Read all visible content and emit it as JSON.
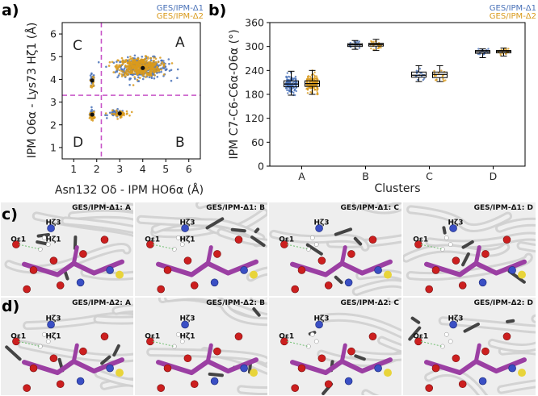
{
  "panel_labels": {
    "a": "a)",
    "b": "b)",
    "c": "c)",
    "d": "d)"
  },
  "colors": {
    "delta1": "#4a72b8",
    "delta2": "#d99a1c",
    "guide": "#c855c8",
    "center": "#111111"
  },
  "chart_data": [
    {
      "type": "scatter",
      "xlabel": "Asn132 Oδ - IPM HO6α (Å)",
      "ylabel": "IPM O6α - Lys73 Hζ1 (Å)",
      "xlim": [
        0.5,
        6.5
      ],
      "ylim": [
        0.5,
        6.5
      ],
      "xticks": [
        "1",
        "2",
        "3",
        "4",
        "5",
        "6"
      ],
      "yticks": [
        "1",
        "2",
        "3",
        "4",
        "5",
        "6"
      ],
      "grid": false,
      "legend": {
        "position": "top-right",
        "entries": [
          "GES/IPM-Δ1",
          "GES/IPM-Δ2"
        ]
      },
      "guides": {
        "x": 2.2,
        "y": 3.3
      },
      "regions": {
        "A": "A",
        "B": "B",
        "C": "C",
        "D": "D"
      },
      "series": [
        {
          "name": "GES/IPM-Δ1",
          "clusters": [
            {
              "center": [
                4.0,
                4.5
              ],
              "spread": [
                0.55,
                0.22
              ],
              "n": 340
            },
            {
              "center": [
                1.8,
                2.45
              ],
              "spread": [
                0.05,
                0.1
              ],
              "n": 50
            },
            {
              "center": [
                1.8,
                3.95
              ],
              "spread": [
                0.05,
                0.15
              ],
              "n": 26
            },
            {
              "center": [
                2.85,
                2.5
              ],
              "spread": [
                0.18,
                0.08
              ],
              "n": 30
            }
          ]
        },
        {
          "name": "GES/IPM-Δ2",
          "clusters": [
            {
              "center": [
                3.85,
                4.55
              ],
              "spread": [
                0.45,
                0.2
              ],
              "n": 440
            },
            {
              "center": [
                1.8,
                2.4
              ],
              "spread": [
                0.05,
                0.08
              ],
              "n": 60
            },
            {
              "center": [
                1.82,
                3.9
              ],
              "spread": [
                0.05,
                0.12
              ],
              "n": 18
            },
            {
              "center": [
                3.0,
                2.48
              ],
              "spread": [
                0.2,
                0.07
              ],
              "n": 50
            }
          ]
        }
      ],
      "centroids": [
        [
          4.0,
          4.5
        ],
        [
          1.8,
          2.45
        ],
        [
          1.8,
          3.95
        ],
        [
          3.0,
          2.5
        ]
      ]
    },
    {
      "type": "box",
      "xlabel": "Clusters",
      "ylabel": "IPM C7-C6-C6α-O6α (°)",
      "ylim": [
        0,
        360
      ],
      "yticks": [
        "0",
        "60",
        "120",
        "180",
        "240",
        "300",
        "360"
      ],
      "categories": [
        "A",
        "B",
        "C",
        "D"
      ],
      "legend": {
        "position": "top-right",
        "entries": [
          "GES/IPM-Δ1",
          "GES/IPM-Δ2"
        ]
      },
      "series": [
        {
          "name": "GES/IPM-Δ1",
          "boxes": [
            {
              "min": 178,
              "q1": 199,
              "median": 206,
              "q3": 214,
              "max": 238,
              "n": 120
            },
            {
              "min": 293,
              "q1": 300,
              "median": 304,
              "q3": 307,
              "max": 315,
              "n": 18
            },
            {
              "min": 212,
              "q1": 223,
              "median": 228,
              "q3": 236,
              "max": 252,
              "n": 16
            },
            {
              "min": 272,
              "q1": 283,
              "median": 287,
              "q3": 290,
              "max": 294,
              "n": 16
            }
          ]
        },
        {
          "name": "GES/IPM-Δ2",
          "boxes": [
            {
              "min": 180,
              "q1": 200,
              "median": 207,
              "q3": 214,
              "max": 240,
              "n": 160
            },
            {
              "min": 290,
              "q1": 301,
              "median": 305,
              "q3": 308,
              "max": 318,
              "n": 30
            },
            {
              "min": 212,
              "q1": 222,
              "median": 230,
              "q3": 236,
              "max": 252,
              "n": 18
            },
            {
              "min": 276,
              "q1": 284,
              "median": 288,
              "q3": 290,
              "max": 296,
              "n": 18
            }
          ]
        }
      ]
    }
  ],
  "images": {
    "row_c": [
      {
        "title": "GES/IPM-Δ1: A",
        "labels": [
          "Oε1",
          "Hζ3",
          "Hζ1"
        ]
      },
      {
        "title": "GES/IPM-Δ1: B",
        "labels": [
          "Oε1",
          "Hζ3",
          "Hζ1"
        ]
      },
      {
        "title": "GES/IPM-Δ1: C",
        "labels": [
          "Oε1",
          "Hζ3"
        ]
      },
      {
        "title": "GES/IPM-Δ1: D",
        "labels": [
          "Oε1",
          "Hζ3"
        ]
      }
    ],
    "row_d": [
      {
        "title": "GES/IPM-Δ2: A",
        "labels": [
          "Oε1",
          "Hζ3",
          "Hζ1"
        ]
      },
      {
        "title": "GES/IPM-Δ2: B",
        "labels": [
          "Oε1",
          "Hζ3",
          "Hζ1"
        ]
      },
      {
        "title": "GES/IPM-Δ2: C",
        "labels": [
          "Oε1",
          "Hζ3"
        ]
      },
      {
        "title": "GES/IPM-Δ2: D",
        "labels": [
          "Oε1",
          "Hζ3"
        ]
      }
    ]
  }
}
